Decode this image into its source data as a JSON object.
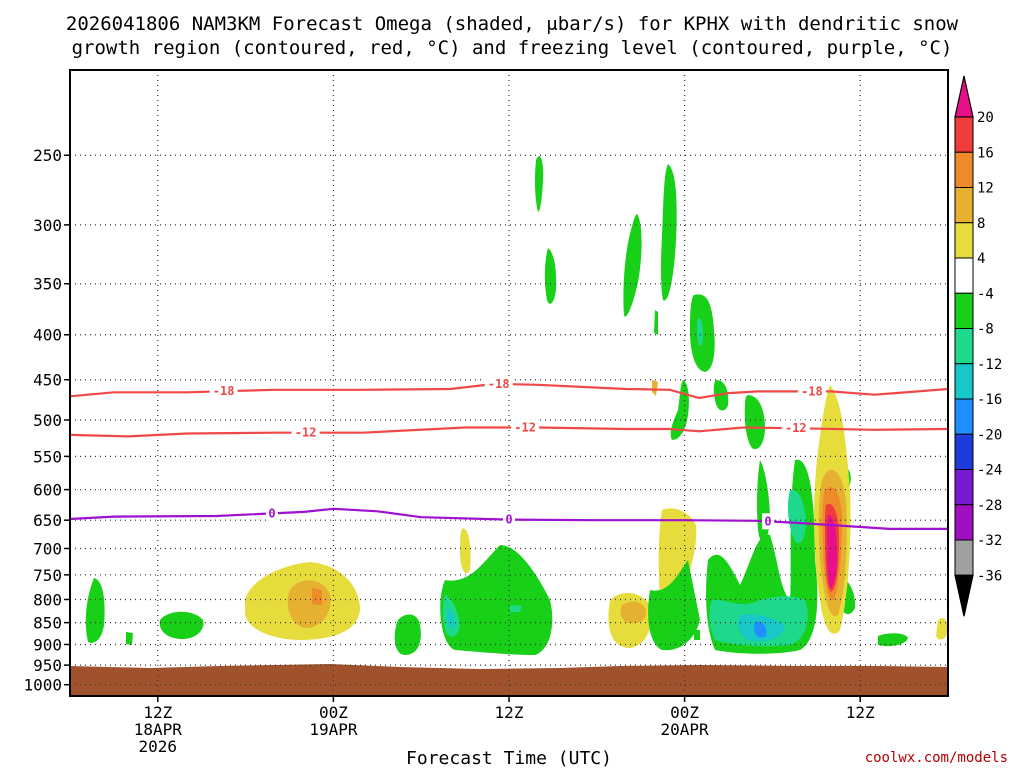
{
  "chart_data": {
    "type": "contour",
    "title": [
      "2026041806 NAM3KM Forecast Omega (shaded, μbar/s) for KPHX with dendritic snow",
      "growth region (contoured, red, °C) and freezing level (contoured, purple, °C)"
    ],
    "xlabel": "Forecast Time (UTC)",
    "ylabel": "",
    "credit": "coolwx.com/models",
    "x_unit": "hours since 06Z 18APR",
    "xlim": [
      0,
      60
    ],
    "x_ticks": [
      {
        "x": 6,
        "lines": [
          "12Z",
          "18APR",
          "2026"
        ]
      },
      {
        "x": 18,
        "lines": [
          "00Z",
          "19APR"
        ]
      },
      {
        "x": 30,
        "lines": [
          "12Z"
        ]
      },
      {
        "x": 42,
        "lines": [
          "00Z",
          "20APR"
        ]
      },
      {
        "x": 54,
        "lines": [
          "12Z"
        ]
      }
    ],
    "y_unit": "hPa",
    "ylim": [
      1030,
      200
    ],
    "y_ticks": [
      250,
      300,
      350,
      400,
      450,
      500,
      550,
      600,
      650,
      700,
      750,
      800,
      850,
      900,
      950,
      1000
    ],
    "colorbar": {
      "labels": [
        "20",
        "16",
        "12",
        "8",
        "4",
        "-4",
        "-8",
        "-12",
        "-16",
        "-20",
        "-24",
        "-28",
        "-32",
        "-36"
      ],
      "levels": [
        {
          "min": 20,
          "max": null,
          "color": "#e8108a"
        },
        {
          "min": 16,
          "max": 20,
          "color": "#f03c3c"
        },
        {
          "min": 12,
          "max": 16,
          "color": "#ef8a2a"
        },
        {
          "min": 8,
          "max": 12,
          "color": "#e6b030"
        },
        {
          "min": 4,
          "max": 8,
          "color": "#e6dc3c"
        },
        {
          "min": -4,
          "max": 4,
          "color": "#ffffff"
        },
        {
          "min": -8,
          "max": -4,
          "color": "#18d018"
        },
        {
          "min": -12,
          "max": -8,
          "color": "#1ed98c"
        },
        {
          "min": -16,
          "max": -12,
          "color": "#18c8c8"
        },
        {
          "min": -20,
          "max": -16,
          "color": "#1e90ff"
        },
        {
          "min": -24,
          "max": -20,
          "color": "#1e3cdc"
        },
        {
          "min": -28,
          "max": -24,
          "color": "#7a18d2"
        },
        {
          "min": -32,
          "max": -28,
          "color": "#a010c0"
        },
        {
          "min": -36,
          "max": -32,
          "color": "#a0a0a0"
        },
        {
          "min": null,
          "max": -36,
          "color": "#000000"
        }
      ]
    },
    "ground_color": "#a0522d",
    "series": [
      {
        "name": "-18",
        "label": "-18",
        "color": "#f04848",
        "label_x": [
          10.5,
          29.3,
          50.7
        ],
        "points": [
          [
            0,
            470
          ],
          [
            3,
            465
          ],
          [
            8,
            465
          ],
          [
            14,
            462
          ],
          [
            20,
            462
          ],
          [
            26,
            461
          ],
          [
            29,
            455
          ],
          [
            32,
            456
          ],
          [
            38,
            461
          ],
          [
            41,
            462
          ],
          [
            43,
            472
          ],
          [
            45,
            466
          ],
          [
            47,
            464
          ],
          [
            52,
            464
          ],
          [
            55,
            468
          ],
          [
            60,
            461
          ]
        ]
      },
      {
        "name": "-12",
        "label": "-12",
        "color": "#f04848",
        "label_x": [
          16.1,
          31.1,
          49.6
        ],
        "points": [
          [
            0,
            520
          ],
          [
            4,
            522
          ],
          [
            8,
            518
          ],
          [
            14,
            517
          ],
          [
            20,
            517
          ],
          [
            27,
            510
          ],
          [
            32,
            510
          ],
          [
            38,
            512
          ],
          [
            41,
            512
          ],
          [
            43,
            515
          ],
          [
            46,
            510
          ],
          [
            50,
            511
          ],
          [
            55,
            513
          ],
          [
            60,
            512
          ]
        ]
      },
      {
        "name": "0",
        "label": "0",
        "color": "#a010d0",
        "label_x": [
          13.8,
          30.0,
          47.7
        ],
        "points": [
          [
            0,
            648
          ],
          [
            3,
            644
          ],
          [
            10,
            643
          ],
          [
            16,
            636
          ],
          [
            18,
            631
          ],
          [
            21,
            635
          ],
          [
            24,
            645
          ],
          [
            30,
            649
          ],
          [
            36,
            650
          ],
          [
            42,
            650
          ],
          [
            47,
            651
          ],
          [
            50,
            655
          ],
          [
            53,
            660
          ],
          [
            56,
            665
          ],
          [
            60,
            665
          ]
        ]
      }
    ],
    "shaded_regions": [
      {
        "name": "yellow-cell-800",
        "level": "4 to 8",
        "pressure_range": [
          750,
          880
        ],
        "time_range": [
          12,
          19
        ]
      },
      {
        "name": "orange-cell-820",
        "level": "8 to 16",
        "pressure_range": [
          790,
          860
        ],
        "time_range": [
          15,
          17
        ]
      },
      {
        "name": "green-cell-850-12z19",
        "level": "-8 to -4",
        "pressure_range": [
          720,
          920
        ],
        "time_range": [
          25,
          33
        ]
      },
      {
        "name": "yellow-cell-840-00z20",
        "level": "4 to 12",
        "pressure_range": [
          660,
          900
        ],
        "time_range": [
          38,
          43
        ]
      },
      {
        "name": "green-cell-800-06z20",
        "level": "-8 to -16",
        "pressure_range": [
          580,
          930
        ],
        "time_range": [
          44,
          51
        ]
      },
      {
        "name": "magenta-cell-700-09z20",
        "level": "8 to >20",
        "pressure_range": [
          480,
          890
        ],
        "time_range": [
          50,
          53
        ]
      }
    ]
  }
}
